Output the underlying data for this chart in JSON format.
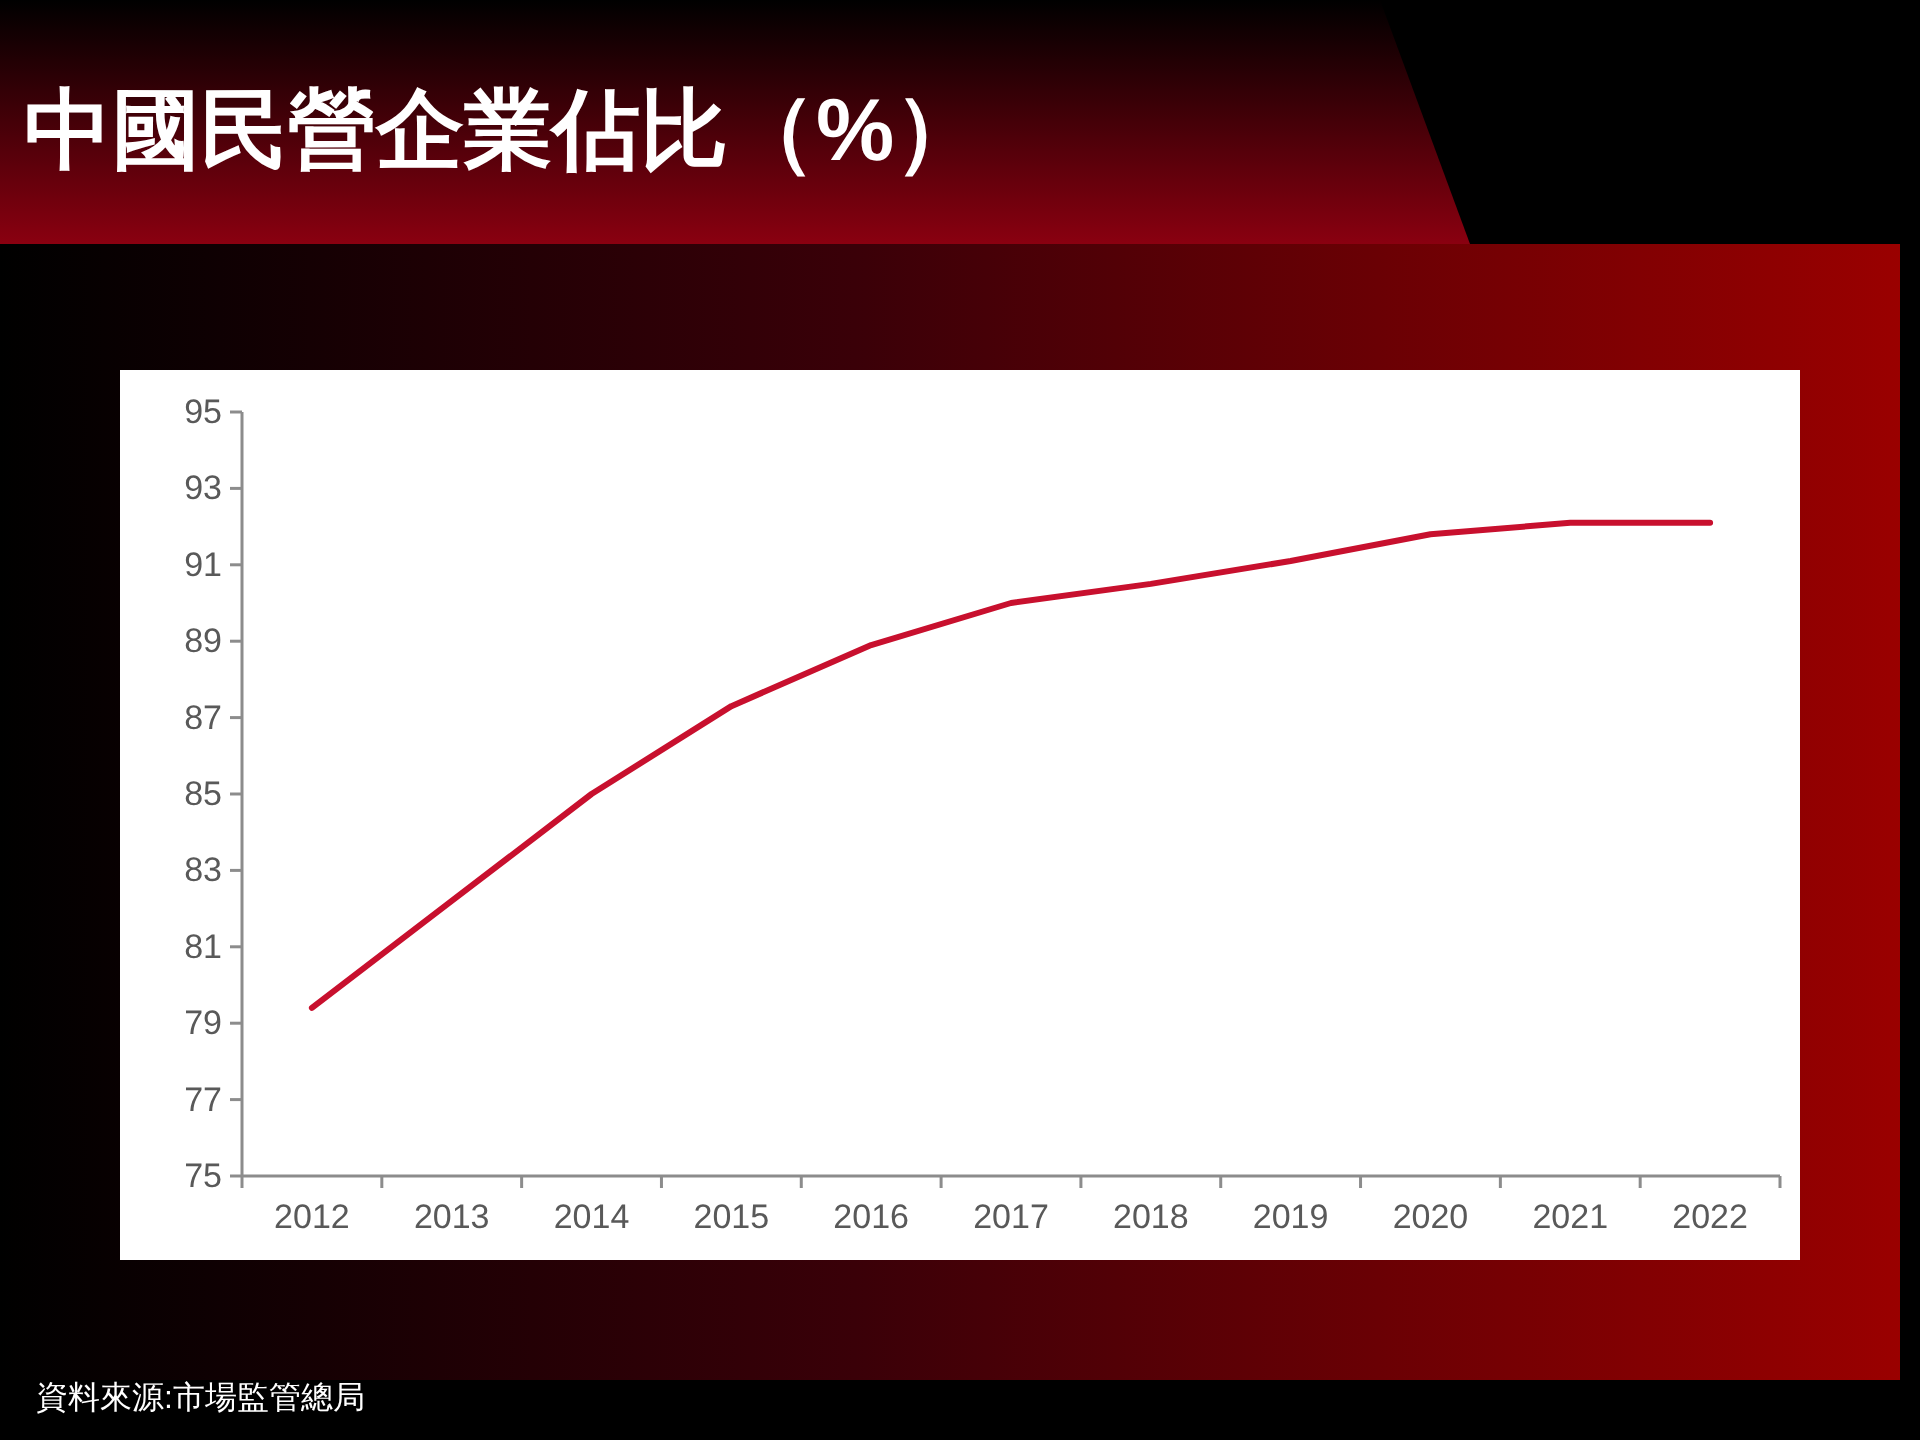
{
  "chart_data": {
    "type": "line",
    "title": "中國民營企業佔比（%）",
    "categories": [
      "2012",
      "2013",
      "2014",
      "2015",
      "2016",
      "2017",
      "2018",
      "2019",
      "2020",
      "2021",
      "2022"
    ],
    "series": [
      {
        "color": "#c8102e",
        "values": [
          79.4,
          82.2,
          85.0,
          87.3,
          88.9,
          90.0,
          90.5,
          91.1,
          91.8,
          92.1,
          92.1
        ]
      }
    ],
    "ylim": [
      75,
      95
    ],
    "yticks": [
      75,
      77,
      79,
      81,
      83,
      85,
      87,
      89,
      91,
      93,
      95
    ],
    "grid": false,
    "annotations": [
      "資料來源:市場監管總局"
    ]
  }
}
